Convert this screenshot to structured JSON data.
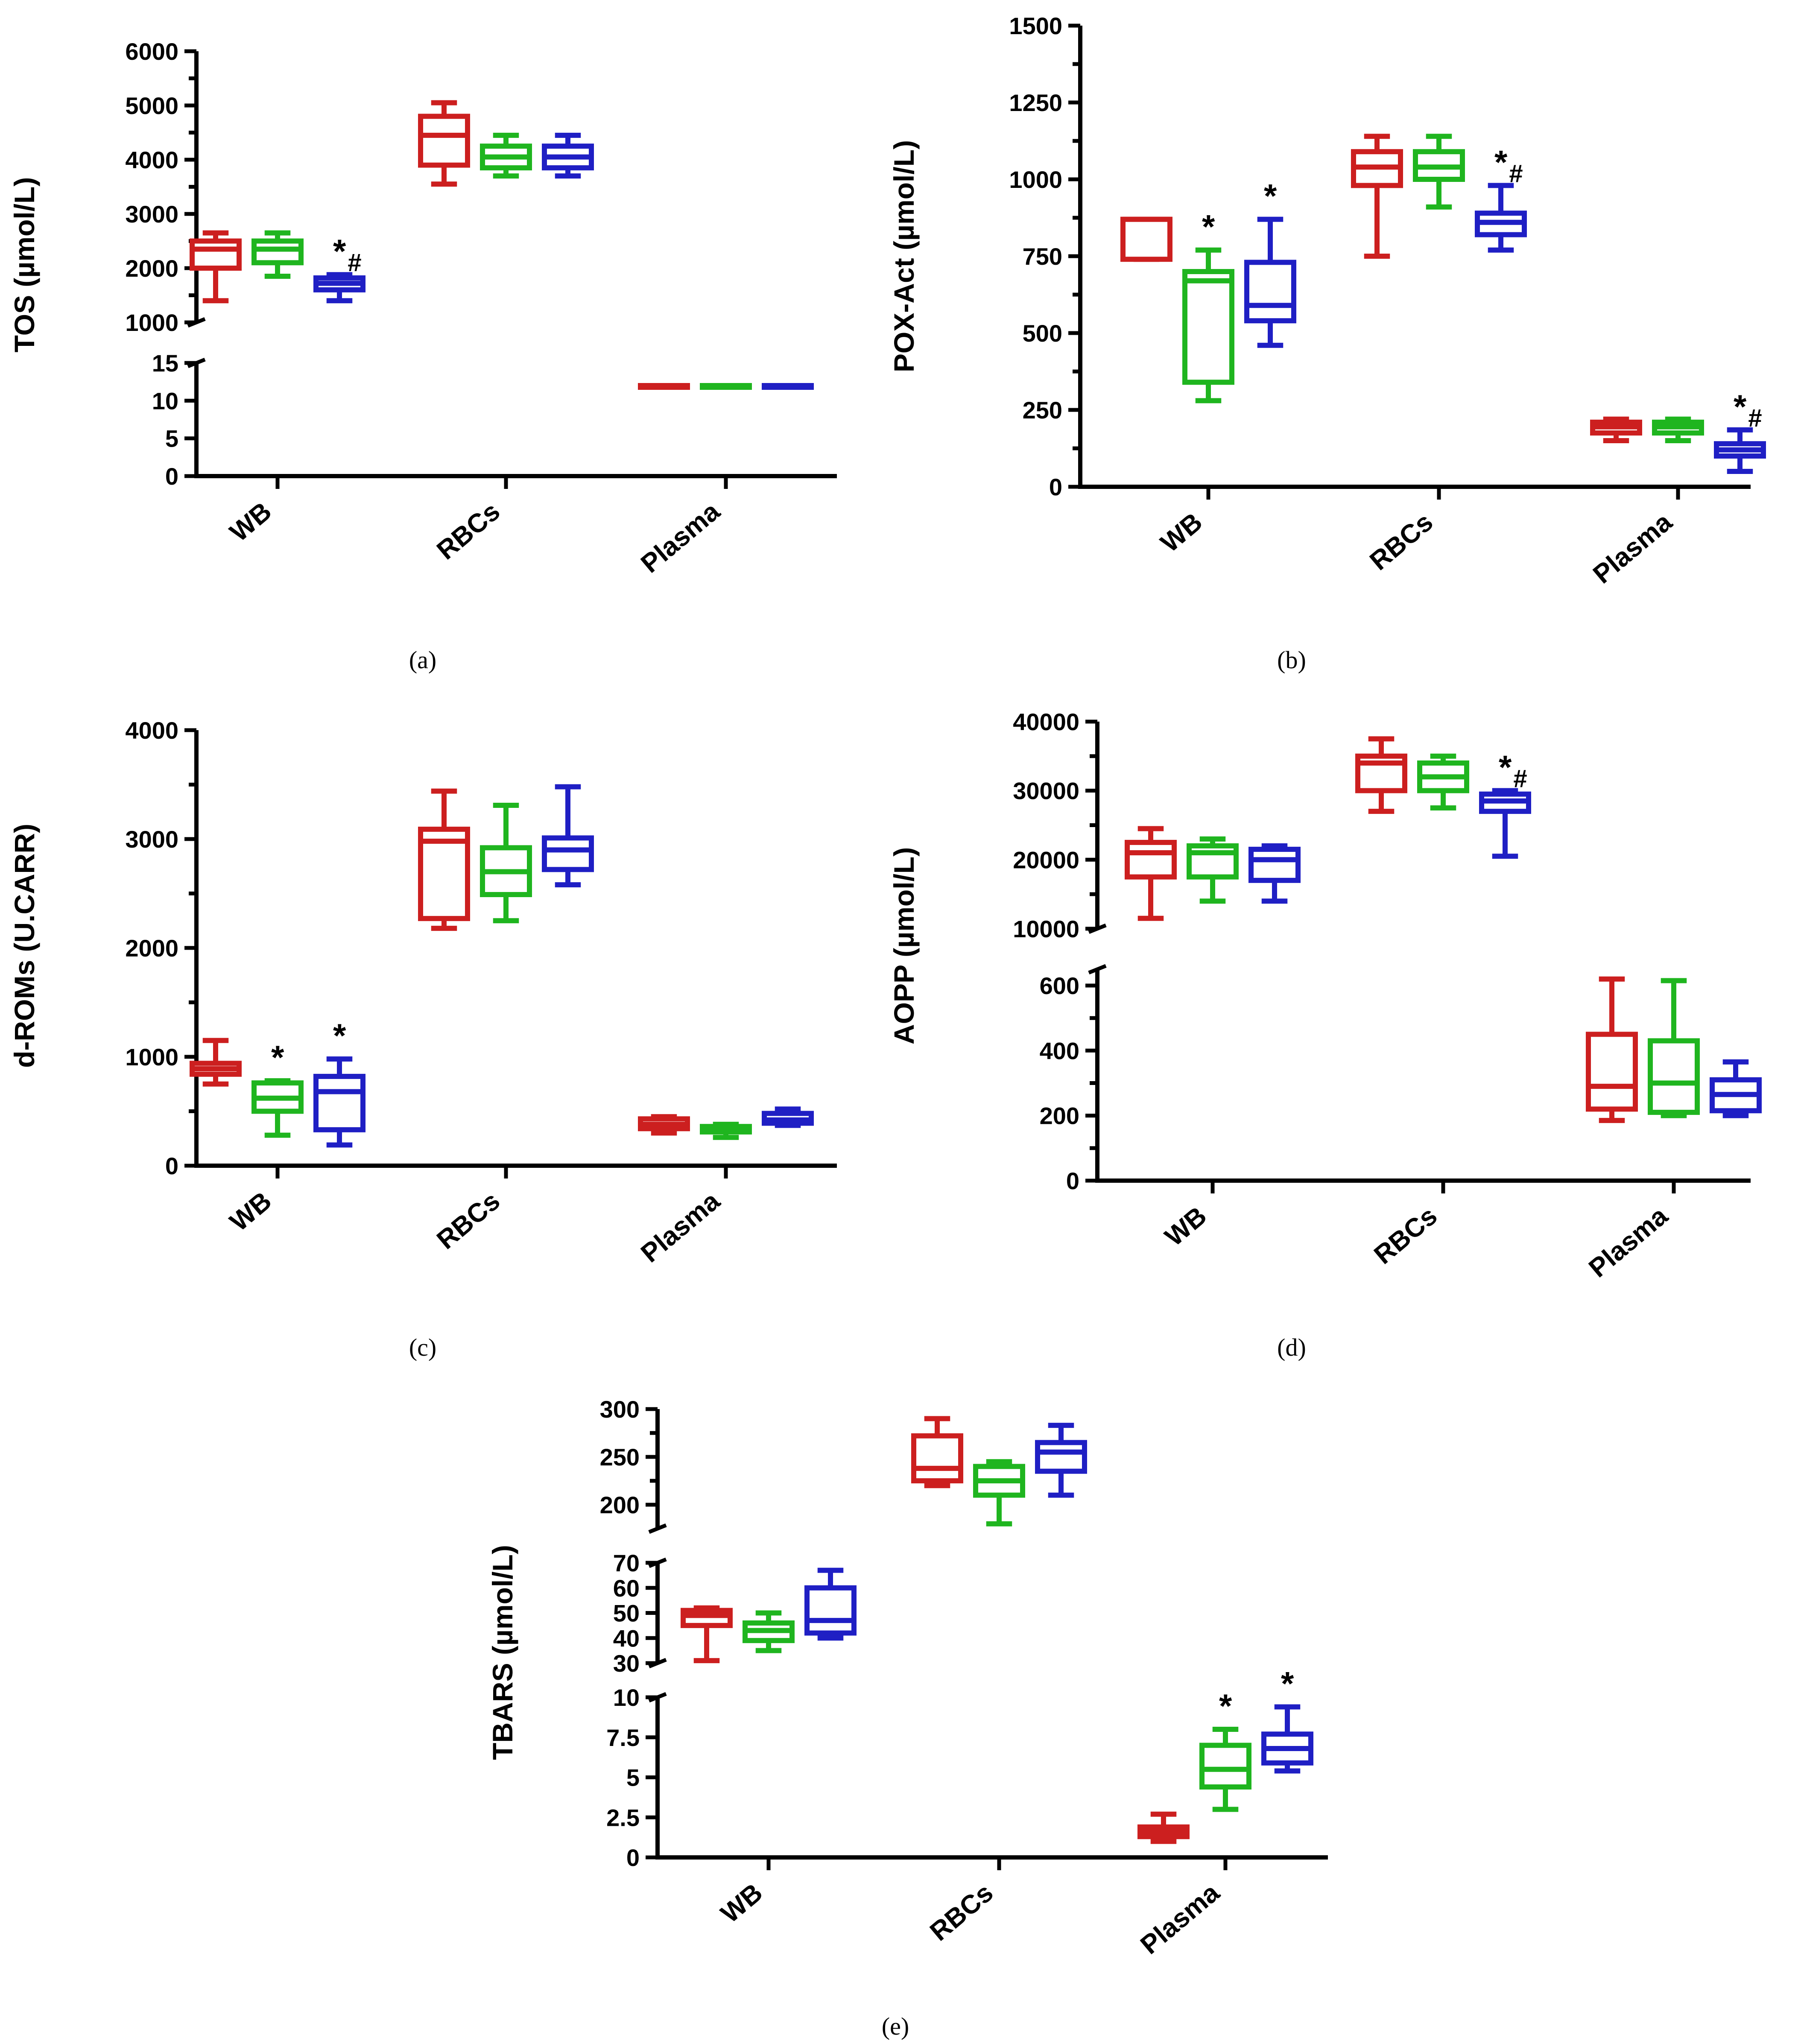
{
  "chart_data": [
    {
      "id": "a",
      "type": "box",
      "panel_label": "(a)",
      "ylabel": "TOS (µmol/L)",
      "categories": [
        "WB",
        "RBCs",
        "Plasma"
      ],
      "colors": [
        "#cc1f1f",
        "#1fb51f",
        "#1f1fc4"
      ],
      "segments": [
        {
          "range": [
            1000,
            6000
          ],
          "ticks": [
            1000,
            2000,
            3000,
            4000,
            5000,
            6000
          ],
          "minor_per_major": 1
        },
        {
          "range": [
            0,
            15
          ],
          "ticks": [
            0,
            5,
            10,
            15
          ],
          "minor_per_major": 0
        }
      ],
      "boxes": [
        [
          {
            "min": 1400,
            "q1": 2000,
            "med": 2350,
            "q3": 2500,
            "max": 2650
          },
          {
            "min": 1850,
            "q1": 2100,
            "med": 2350,
            "q3": 2500,
            "max": 2650
          },
          {
            "min": 1400,
            "q1": 1600,
            "med": 1720,
            "q3": 1820,
            "max": 1880,
            "sig": "*#"
          }
        ],
        [
          {
            "min": 3550,
            "q1": 3900,
            "med": 4450,
            "q3": 4800,
            "max": 5050
          },
          {
            "min": 3700,
            "q1": 3850,
            "med": 4050,
            "q3": 4250,
            "max": 4450
          },
          {
            "min": 3700,
            "q1": 3850,
            "med": 4050,
            "q3": 4250,
            "max": 4450
          }
        ],
        [
          {
            "min": 12,
            "q1": 12,
            "med": 12,
            "q3": 12,
            "max": 12
          },
          {
            "min": 12,
            "q1": 12,
            "med": 12,
            "q3": 12,
            "max": 12
          },
          {
            "min": 12,
            "q1": 12,
            "med": 12,
            "q3": 12,
            "max": 12
          }
        ]
      ]
    },
    {
      "id": "b",
      "type": "box",
      "panel_label": "(b)",
      "ylabel": "POX-Act (µmol/L)",
      "categories": [
        "WB",
        "RBCs",
        "Plasma"
      ],
      "colors": [
        "#cc1f1f",
        "#1fb51f",
        "#1f1fc4"
      ],
      "segments": [
        {
          "range": [
            0,
            1500
          ],
          "ticks": [
            0,
            250,
            500,
            750,
            1000,
            1250,
            1500
          ],
          "minor_per_major": 1
        }
      ],
      "boxes": [
        [
          {
            "min": 740,
            "q1": 740,
            "med": 870,
            "q3": 870,
            "max": 870
          },
          {
            "min": 280,
            "q1": 340,
            "med": 670,
            "q3": 700,
            "max": 770,
            "sig": "*"
          },
          {
            "min": 460,
            "q1": 540,
            "med": 590,
            "q3": 730,
            "max": 870,
            "sig": "*"
          }
        ],
        [
          {
            "min": 750,
            "q1": 980,
            "med": 1040,
            "q3": 1090,
            "max": 1140
          },
          {
            "min": 910,
            "q1": 1000,
            "med": 1040,
            "q3": 1090,
            "max": 1140
          },
          {
            "min": 770,
            "q1": 820,
            "med": 860,
            "q3": 890,
            "max": 980,
            "sig": "*#"
          }
        ],
        [
          {
            "min": 150,
            "q1": 175,
            "med": 195,
            "q3": 210,
            "max": 220
          },
          {
            "min": 150,
            "q1": 175,
            "med": 195,
            "q3": 210,
            "max": 220
          },
          {
            "min": 50,
            "q1": 100,
            "med": 120,
            "q3": 140,
            "max": 185,
            "sig": "*#"
          }
        ]
      ]
    },
    {
      "id": "c",
      "type": "box",
      "panel_label": "(c)",
      "ylabel": "d-ROMs (U.CARR)",
      "categories": [
        "WB",
        "RBCs",
        "Plasma"
      ],
      "colors": [
        "#cc1f1f",
        "#1fb51f",
        "#1f1fc4"
      ],
      "segments": [
        {
          "range": [
            0,
            4000
          ],
          "ticks": [
            0,
            1000,
            2000,
            3000,
            4000
          ],
          "minor_per_major": 1
        }
      ],
      "boxes": [
        [
          {
            "min": 750,
            "q1": 840,
            "med": 890,
            "q3": 940,
            "max": 1150
          },
          {
            "min": 280,
            "q1": 500,
            "med": 620,
            "q3": 760,
            "max": 780,
            "sig": "*"
          },
          {
            "min": 190,
            "q1": 330,
            "med": 680,
            "q3": 820,
            "max": 980,
            "sig": "*"
          }
        ],
        [
          {
            "min": 2180,
            "q1": 2270,
            "med": 2980,
            "q3": 3090,
            "max": 3440
          },
          {
            "min": 2250,
            "q1": 2490,
            "med": 2700,
            "q3": 2920,
            "max": 3310
          },
          {
            "min": 2580,
            "q1": 2720,
            "med": 2900,
            "q3": 3010,
            "max": 3480
          }
        ],
        [
          {
            "min": 300,
            "q1": 340,
            "med": 380,
            "q3": 430,
            "max": 450
          },
          {
            "min": 260,
            "q1": 310,
            "med": 340,
            "q3": 360,
            "max": 380
          },
          {
            "min": 370,
            "q1": 390,
            "med": 420,
            "q3": 480,
            "max": 520
          }
        ]
      ]
    },
    {
      "id": "d",
      "type": "box",
      "panel_label": "(d)",
      "ylabel": "AOPP (µmol/L)",
      "categories": [
        "WB",
        "RBCs",
        "Plasma"
      ],
      "colors": [
        "#cc1f1f",
        "#1fb51f",
        "#1f1fc4"
      ],
      "segments": [
        {
          "range": [
            10000,
            40000
          ],
          "ticks": [
            10000,
            20000,
            30000,
            40000
          ],
          "minor_per_major": 1
        },
        {
          "range": [
            0,
            650
          ],
          "ticks": [
            0,
            200,
            400,
            600
          ],
          "minor_per_major": 1
        }
      ],
      "boxes": [
        [
          {
            "min": 11500,
            "q1": 17500,
            "med": 21000,
            "q3": 22500,
            "max": 24500
          },
          {
            "min": 14000,
            "q1": 17500,
            "med": 21000,
            "q3": 22000,
            "max": 23000
          },
          {
            "min": 14000,
            "q1": 17000,
            "med": 20000,
            "q3": 21500,
            "max": 22000
          }
        ],
        [
          {
            "min": 27000,
            "q1": 30000,
            "med": 34000,
            "q3": 35000,
            "max": 37500
          },
          {
            "min": 27500,
            "q1": 30000,
            "med": 32000,
            "q3": 34000,
            "max": 35000
          },
          {
            "min": 20500,
            "q1": 27000,
            "med": 28500,
            "q3": 29500,
            "max": 30000,
            "sig": "*#"
          }
        ],
        [
          {
            "min": 185,
            "q1": 220,
            "med": 290,
            "q3": 450,
            "max": 620
          },
          {
            "min": 200,
            "q1": 210,
            "med": 300,
            "q3": 430,
            "max": 615
          },
          {
            "min": 200,
            "q1": 215,
            "med": 265,
            "q3": 310,
            "max": 365
          }
        ]
      ]
    },
    {
      "id": "e",
      "type": "box",
      "panel_label": "(e)",
      "ylabel": "TBARS (µmol/L)",
      "categories": [
        "WB",
        "RBCs",
        "Plasma"
      ],
      "colors": [
        "#cc1f1f",
        "#1fb51f",
        "#1f1fc4"
      ],
      "segments": [
        {
          "range": [
            175,
            300
          ],
          "ticks": [
            200,
            250,
            300
          ],
          "minor_per_major": 1
        },
        {
          "range": [
            30,
            70
          ],
          "ticks": [
            30,
            40,
            50,
            60,
            70
          ],
          "minor_per_major": 0
        },
        {
          "range": [
            0,
            10
          ],
          "ticks": [
            0.0,
            2.5,
            5.0,
            7.5,
            10.0
          ],
          "minor_per_major": 0
        }
      ],
      "boxes": [
        [
          {
            "seg": 1,
            "min": 31,
            "q1": 45,
            "med": 49,
            "q3": 51,
            "max": 52
          },
          {
            "seg": 1,
            "min": 35,
            "q1": 39,
            "med": 43,
            "q3": 46,
            "max": 50
          },
          {
            "seg": 1,
            "min": 40,
            "q1": 42,
            "med": 47,
            "q3": 60,
            "max": 67
          }
        ],
        [
          {
            "seg": 0,
            "min": 220,
            "q1": 225,
            "med": 238,
            "q3": 272,
            "max": 290
          },
          {
            "seg": 0,
            "min": 180,
            "q1": 210,
            "med": 225,
            "q3": 240,
            "max": 245
          },
          {
            "seg": 0,
            "min": 210,
            "q1": 235,
            "med": 255,
            "q3": 265,
            "max": 283
          }
        ],
        [
          {
            "seg": 2,
            "min": 1.0,
            "q1": 1.3,
            "med": 1.6,
            "q3": 1.9,
            "max": 2.7
          },
          {
            "seg": 2,
            "min": 3.0,
            "q1": 4.4,
            "med": 5.5,
            "q3": 7.0,
            "max": 8.0,
            "sig": "*"
          },
          {
            "seg": 2,
            "min": 5.4,
            "q1": 5.9,
            "med": 6.8,
            "q3": 7.7,
            "max": 9.4,
            "sig": "*"
          }
        ]
      ]
    }
  ]
}
